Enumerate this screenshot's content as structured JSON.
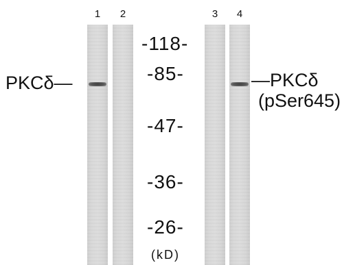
{
  "lanes": [
    {
      "number": "1",
      "band": true
    },
    {
      "number": "2",
      "band": false
    },
    {
      "number": "3",
      "band": false
    },
    {
      "number": "4",
      "band": true
    }
  ],
  "markers": [
    "-118-",
    "-85-",
    "-47-",
    "-36-",
    "-26-"
  ],
  "unit_label": "(kD)",
  "left_label": "PKCδ—",
  "right_label": {
    "line1": "—PKCδ",
    "line2": "(pSer645)"
  }
}
